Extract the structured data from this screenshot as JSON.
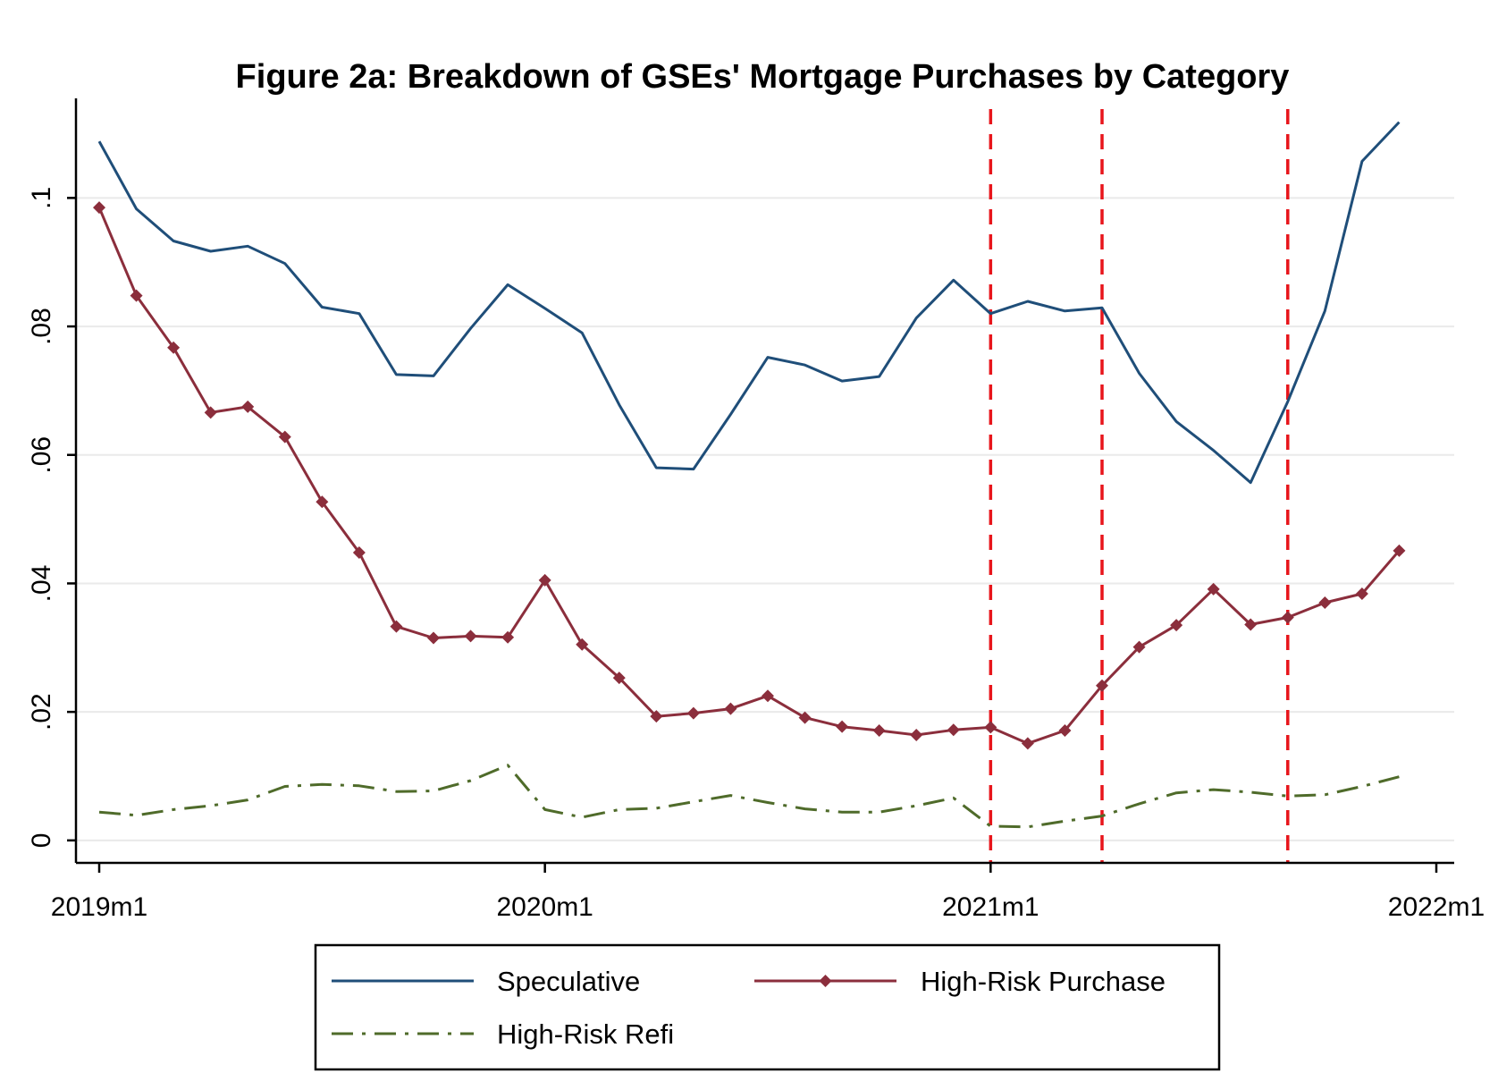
{
  "chart_data": {
    "type": "line",
    "title": "Figure 2a: Breakdown of GSEs' Mortgage Purchases by Category",
    "xlabel": "",
    "ylabel": "",
    "x_unit": "months since 2019m1",
    "x": [
      0,
      1,
      2,
      3,
      4,
      5,
      6,
      7,
      8,
      9,
      10,
      11,
      12,
      13,
      14,
      15,
      16,
      17,
      18,
      19,
      20,
      21,
      22,
      23,
      24,
      25,
      26,
      27,
      28,
      29,
      30,
      31,
      32,
      33,
      34,
      35
    ],
    "xlim": [
      0,
      36
    ],
    "ylim": [
      -0.0035,
      0.1155
    ],
    "x_ticks": [
      {
        "value": 0,
        "label": "2019m1"
      },
      {
        "value": 12,
        "label": "2020m1"
      },
      {
        "value": 24,
        "label": "2021m1"
      },
      {
        "value": 36,
        "label": "2022m1"
      }
    ],
    "y_ticks": [
      {
        "value": 0,
        "label": "0"
      },
      {
        "value": 0.02,
        "label": ".02"
      },
      {
        "value": 0.04,
        "label": ".04"
      },
      {
        "value": 0.06,
        "label": ".06"
      },
      {
        "value": 0.08,
        "label": ".08"
      },
      {
        "value": 0.1,
        "label": ".1"
      }
    ],
    "grid": true,
    "series": [
      {
        "name": "Speculative",
        "color": "#1f4e79",
        "style": "solid",
        "marker": "none",
        "values": [
          0.1088,
          0.0983,
          0.0933,
          0.0917,
          0.0925,
          0.0898,
          0.083,
          0.082,
          0.0725,
          0.0723,
          0.0797,
          0.0865,
          0.0828,
          0.079,
          0.0678,
          0.058,
          0.0578,
          0.0663,
          0.0752,
          0.074,
          0.0715,
          0.0722,
          0.0813,
          0.0872,
          0.082,
          0.0839,
          0.0824,
          0.0829,
          0.0727,
          0.0652,
          0.0607,
          0.0557,
          0.0683,
          0.0824,
          0.1057,
          0.1118
        ]
      },
      {
        "name": "High-Risk Purchase",
        "color": "#8b2e3c",
        "style": "solid",
        "marker": "diamond",
        "values": [
          0.0985,
          0.0848,
          0.0767,
          0.0666,
          0.0675,
          0.0628,
          0.0527,
          0.0448,
          0.0333,
          0.0315,
          0.0318,
          0.0316,
          0.0405,
          0.0305,
          0.0253,
          0.0193,
          0.0198,
          0.0205,
          0.0225,
          0.0191,
          0.0177,
          0.0171,
          0.0164,
          0.0172,
          0.0176,
          0.0151,
          0.0171,
          0.0241,
          0.0301,
          0.0335,
          0.0391,
          0.0336,
          0.0347,
          0.037,
          0.0384,
          0.0451
        ]
      },
      {
        "name": "High-Risk Refi",
        "color": "#4f6b2a",
        "style": "dashdot",
        "marker": "none",
        "values": [
          0.0044,
          0.0039,
          0.0048,
          0.0054,
          0.0063,
          0.0084,
          0.0087,
          0.0085,
          0.0076,
          0.0077,
          0.0093,
          0.0117,
          0.0048,
          0.0036,
          0.0048,
          0.005,
          0.006,
          0.007,
          0.0059,
          0.0049,
          0.0044,
          0.0044,
          0.0054,
          0.0066,
          0.0022,
          0.0021,
          0.003,
          0.0038,
          0.0057,
          0.0074,
          0.0079,
          0.0075,
          0.0069,
          0.0071,
          0.0084,
          0.0099
        ]
      }
    ],
    "vlines": [
      {
        "x": 24,
        "color": "#e8151b",
        "style": "dashed"
      },
      {
        "x": 27,
        "color": "#e8151b",
        "style": "dashed"
      },
      {
        "x": 32,
        "color": "#e8151b",
        "style": "dashed"
      }
    ],
    "legend": {
      "position": "bottom",
      "entries": [
        "Speculative",
        "High-Risk Purchase",
        "High-Risk Refi"
      ]
    }
  }
}
